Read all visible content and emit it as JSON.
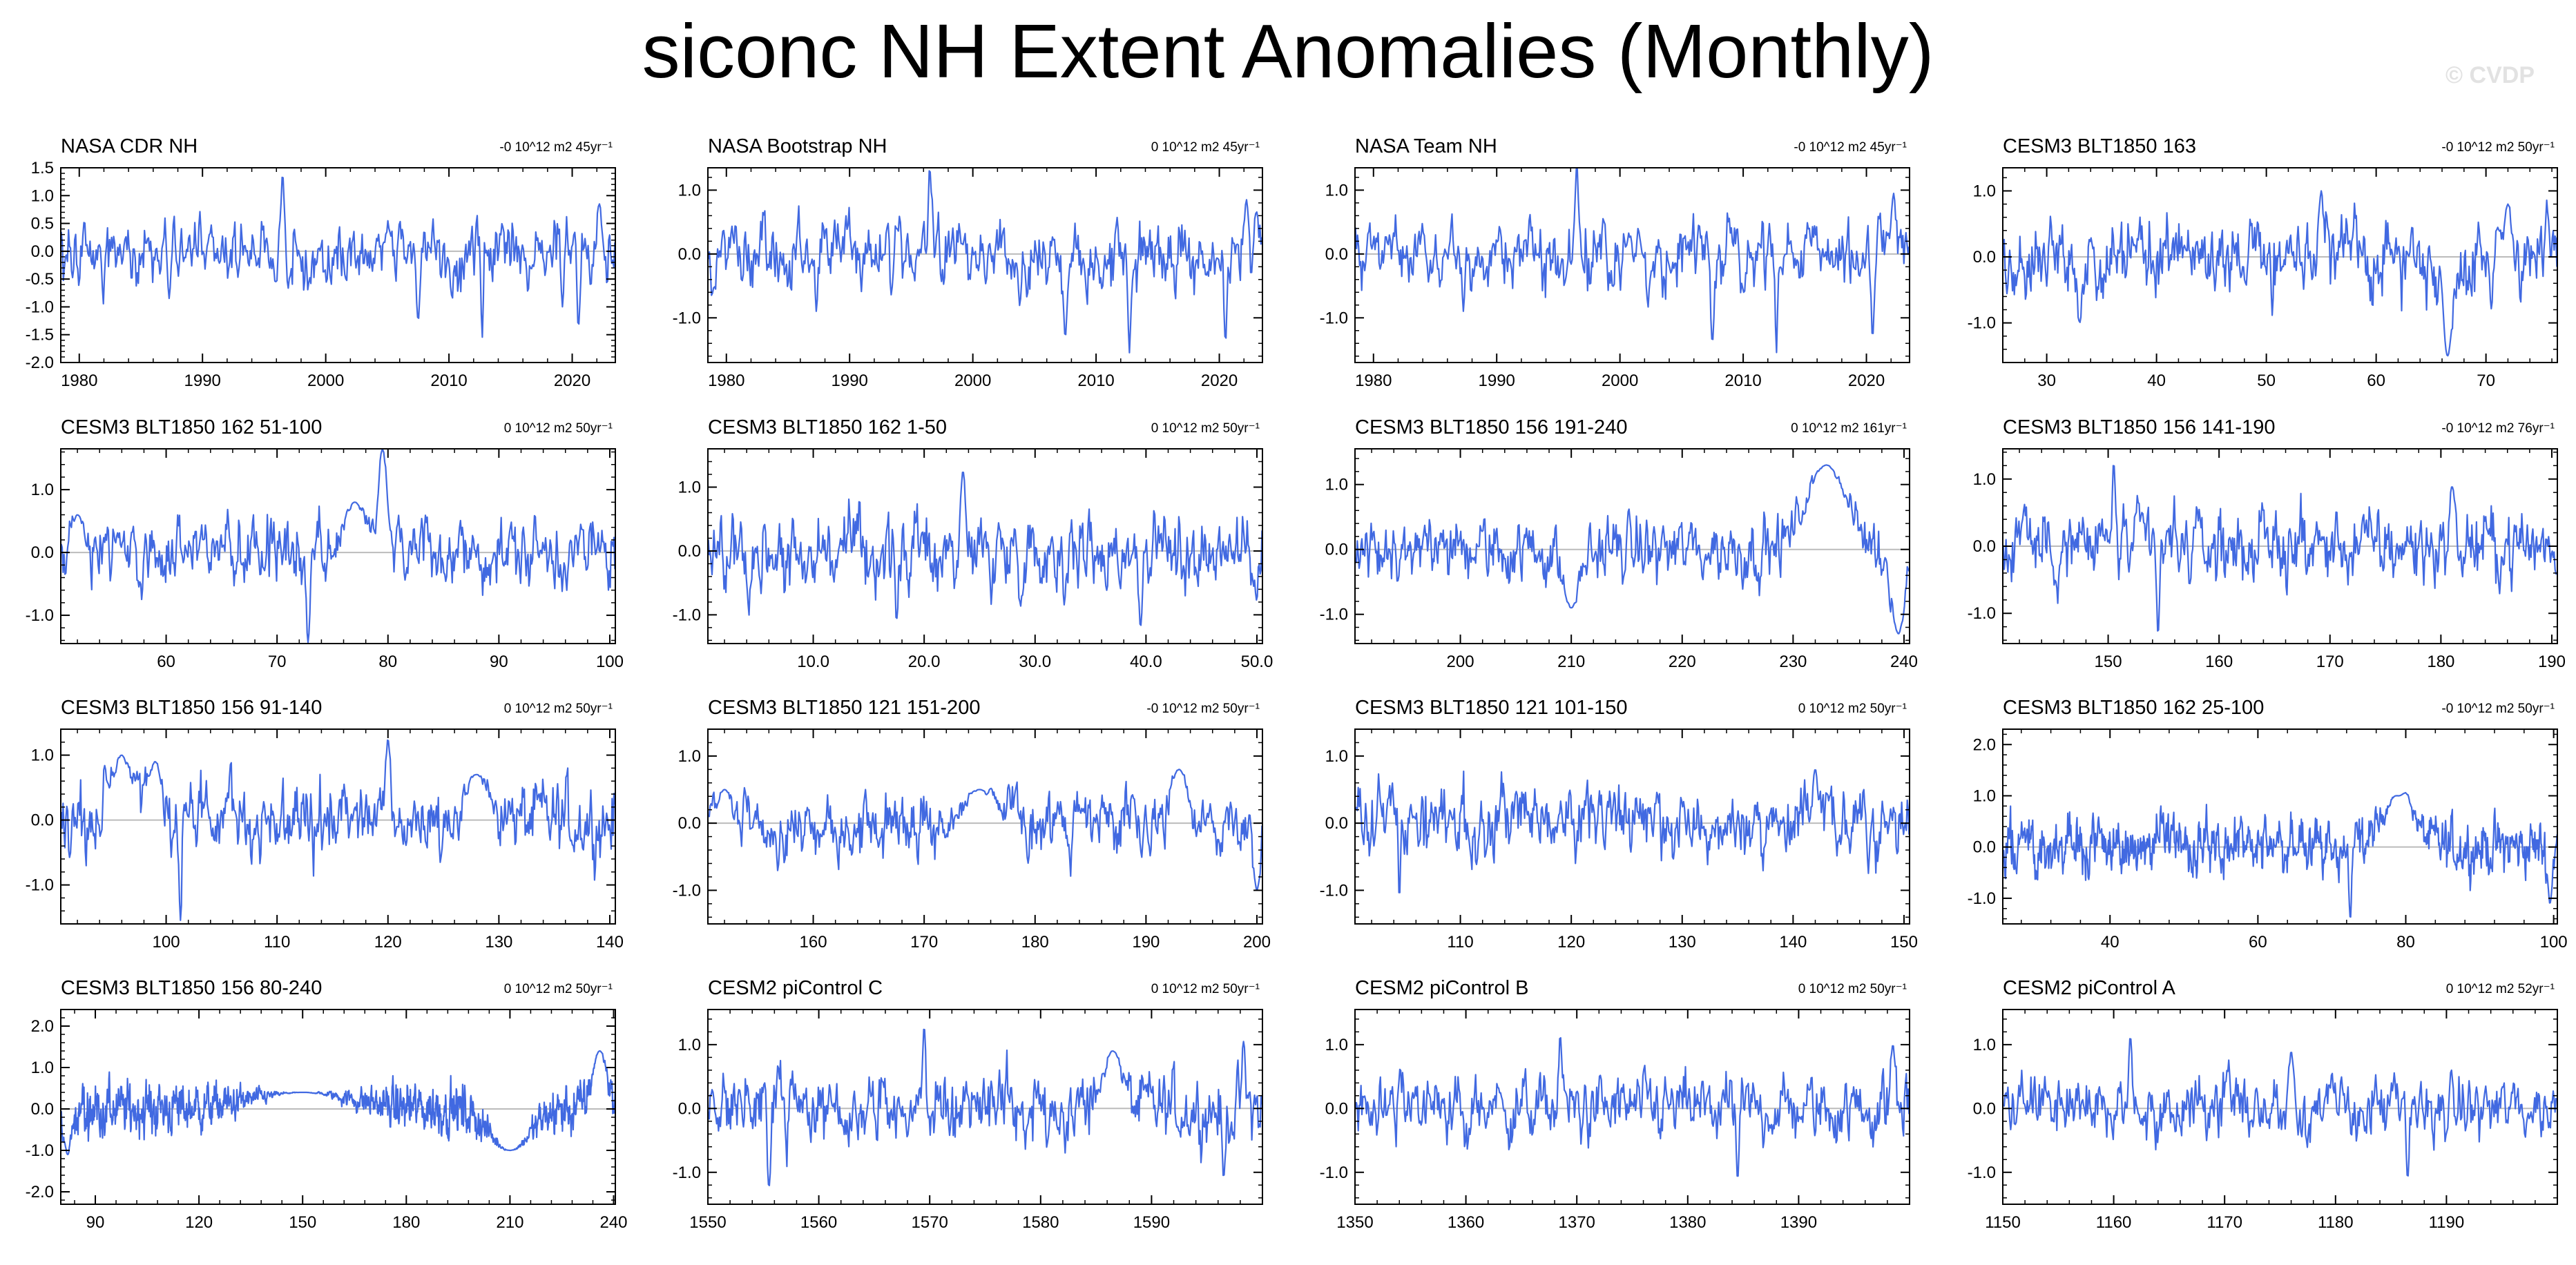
{
  "figure": {
    "title": "siconc NH Extent Anomalies (Monthly)",
    "watermark": "© CVDP",
    "line_color": "#4169e1",
    "zero_line_color": "#bbbbbb"
  },
  "chart_data": [
    {
      "type": "line",
      "title": "NASA CDR NH",
      "trend": "-0 10^12 m2 45yr⁻¹",
      "xlim": [
        1978.5,
        2023.5
      ],
      "ylim": [
        -2.0,
        1.5
      ],
      "xticks": [
        "1980",
        "1990",
        "2000",
        "2010",
        "2020"
      ],
      "xtick_values": [
        1980,
        1990,
        2000,
        2010,
        2020
      ],
      "yticks": [
        "1.5",
        "1.0",
        "0.5",
        "0.0",
        "-0.5",
        "-1.0",
        "-1.5",
        "-2.0"
      ],
      "ytick_values": [
        1.5,
        1.0,
        0.5,
        0.0,
        -0.5,
        -1.0,
        -1.5,
        -2.0
      ],
      "n_points": 540,
      "amplitude": 0.35,
      "seed": 11,
      "features": [
        [
          1996.5,
          1.4,
          0.2
        ],
        [
          2012.7,
          -1.55,
          0.15
        ],
        [
          2020.5,
          -1.4,
          0.15
        ],
        [
          2007.5,
          -1.25,
          0.2
        ],
        [
          1987.3,
          -0.85,
          0.15
        ],
        [
          2022.2,
          0.85,
          0.25
        ],
        [
          2019.2,
          -1.0,
          0.15
        ]
      ]
    },
    {
      "type": "line",
      "title": "NASA Bootstrap NH",
      "trend": "0 10^12 m2 45yr⁻¹",
      "xlim": [
        1978.5,
        2023.5
      ],
      "ylim": [
        -1.7,
        1.35
      ],
      "xticks": [
        "1980",
        "1990",
        "2000",
        "2010",
        "2020"
      ],
      "xtick_values": [
        1980,
        1990,
        2000,
        2010,
        2020
      ],
      "yticks": [
        "1.0",
        "0.0",
        "-1.0"
      ],
      "ytick_values": [
        1.0,
        0.0,
        -1.0
      ],
      "n_points": 540,
      "amplitude": 0.32,
      "seed": 12,
      "features": [
        [
          1996.5,
          1.35,
          0.2
        ],
        [
          2012.7,
          -1.55,
          0.15
        ],
        [
          2020.5,
          -1.4,
          0.15
        ],
        [
          2007.5,
          -1.3,
          0.2
        ],
        [
          1987.3,
          -0.9,
          0.15
        ],
        [
          2022.2,
          0.85,
          0.25
        ]
      ]
    },
    {
      "type": "line",
      "title": "NASA Team NH",
      "trend": "-0 10^12 m2 45yr⁻¹",
      "xlim": [
        1978.5,
        2023.5
      ],
      "ylim": [
        -1.7,
        1.35
      ],
      "xticks": [
        "1980",
        "1990",
        "2000",
        "2010",
        "2020"
      ],
      "xtick_values": [
        1980,
        1990,
        2000,
        2010,
        2020
      ],
      "yticks": [
        "1.0",
        "0.0",
        "-1.0"
      ],
      "ytick_values": [
        1.0,
        0.0,
        -1.0
      ],
      "n_points": 540,
      "amplitude": 0.32,
      "seed": 13,
      "features": [
        [
          1996.5,
          1.4,
          0.2
        ],
        [
          2012.7,
          -1.55,
          0.15
        ],
        [
          2020.5,
          -1.35,
          0.15
        ],
        [
          2007.5,
          -1.4,
          0.2
        ],
        [
          1987.3,
          -0.9,
          0.15
        ],
        [
          2022.2,
          0.95,
          0.25
        ]
      ]
    },
    {
      "type": "line",
      "title": "CESM3 BLT1850 163",
      "trend": "-0 10^12 m2 50yr⁻¹",
      "xlim": [
        26,
        76.5
      ],
      "ylim": [
        -1.6,
        1.35
      ],
      "xticks": [
        "30",
        "40",
        "50",
        "60",
        "70"
      ],
      "xtick_values": [
        30,
        40,
        50,
        60,
        70
      ],
      "yticks": [
        "1.0",
        "0.0",
        "-1.0"
      ],
      "ytick_values": [
        1.0,
        0.0,
        -1.0
      ],
      "n_points": 600,
      "amplitude": 0.36,
      "seed": 14,
      "features": [
        [
          66.5,
          -1.5,
          0.6
        ],
        [
          55,
          1.0,
          0.3
        ],
        [
          72,
          0.8,
          0.5
        ],
        [
          33,
          -1.0,
          0.3
        ]
      ]
    },
    {
      "type": "line",
      "title": "CESM3 BLT1850 162 51-100",
      "trend": "0 10^12 m2 50yr⁻¹",
      "xlim": [
        50.5,
        100.5
      ],
      "ylim": [
        -1.45,
        1.65
      ],
      "xticks": [
        "60",
        "70",
        "80",
        "90",
        "100"
      ],
      "xtick_values": [
        60,
        70,
        80,
        90,
        100
      ],
      "yticks": [
        "1.0",
        "0.0",
        "-1.0"
      ],
      "ytick_values": [
        1.0,
        0.0,
        -1.0
      ],
      "n_points": 600,
      "amplitude": 0.33,
      "seed": 21,
      "features": [
        [
          79.5,
          1.7,
          0.6
        ],
        [
          72.8,
          -1.45,
          0.2
        ],
        [
          77,
          0.8,
          1.5
        ],
        [
          52,
          0.6,
          0.8
        ]
      ]
    },
    {
      "type": "line",
      "title": "CESM3 BLT1850 162 1-50",
      "trend": "0 10^12 m2 50yr⁻¹",
      "xlim": [
        0.5,
        50.5
      ],
      "ylim": [
        -1.45,
        1.6
      ],
      "xticks": [
        "10.0",
        "20.0",
        "30.0",
        "40.0",
        "50.0"
      ],
      "xtick_values": [
        10,
        20,
        30,
        40,
        50
      ],
      "yticks": [
        "1.0",
        "0.0",
        "-1.0"
      ],
      "ytick_values": [
        1.0,
        0.0,
        -1.0
      ],
      "n_points": 600,
      "amplitude": 0.35,
      "seed": 22,
      "features": [
        [
          23.5,
          1.25,
          0.3
        ],
        [
          39.5,
          -1.2,
          0.2
        ],
        [
          17.5,
          -1.1,
          0.2
        ]
      ]
    },
    {
      "type": "line",
      "title": "CESM3 BLT1850 156 191-240",
      "trend": "0 10^12 m2 161yr⁻¹",
      "xlim": [
        190.5,
        240.5
      ],
      "ylim": [
        -1.45,
        1.55
      ],
      "xticks": [
        "200",
        "210",
        "220",
        "230",
        "240"
      ],
      "xtick_values": [
        200,
        210,
        220,
        230,
        240
      ],
      "yticks": [
        "1.0",
        "0.0",
        "-1.0"
      ],
      "ytick_values": [
        1.0,
        0.0,
        -1.0
      ],
      "n_points": 600,
      "amplitude": 0.3,
      "seed": 23,
      "features": [
        [
          233,
          1.3,
          2.5
        ],
        [
          239.5,
          -1.3,
          0.8
        ],
        [
          210,
          -0.9,
          1.0
        ]
      ]
    },
    {
      "type": "line",
      "title": "CESM3 BLT1850 156 141-190",
      "trend": "-0 10^12 m2 76yr⁻¹",
      "xlim": [
        140.5,
        190.5
      ],
      "ylim": [
        -1.45,
        1.45
      ],
      "xticks": [
        "150",
        "160",
        "170",
        "180",
        "190"
      ],
      "xtick_values": [
        150,
        160,
        170,
        180,
        190
      ],
      "yticks": [
        "1.0",
        "0.0",
        "-1.0"
      ],
      "ytick_values": [
        1.0,
        0.0,
        -1.0
      ],
      "n_points": 600,
      "amplitude": 0.33,
      "seed": 24,
      "features": [
        [
          150.5,
          1.25,
          0.2
        ],
        [
          154.5,
          -1.3,
          0.2
        ],
        [
          181,
          0.9,
          0.3
        ]
      ]
    },
    {
      "type": "line",
      "title": "CESM3 BLT1850 156 91-140",
      "trend": "0 10^12 m2 50yr⁻¹",
      "xlim": [
        90.5,
        140.5
      ],
      "ylim": [
        -1.6,
        1.4
      ],
      "xticks": [
        "100",
        "110",
        "120",
        "130",
        "140"
      ],
      "xtick_values": [
        100,
        110,
        120,
        130,
        140
      ],
      "yticks": [
        "1.0",
        "0.0",
        "-1.0"
      ],
      "ytick_values": [
        1.0,
        0.0,
        -1.0
      ],
      "n_points": 600,
      "amplitude": 0.36,
      "seed": 31,
      "features": [
        [
          101.3,
          -1.55,
          0.15
        ],
        [
          96,
          1.0,
          1.2
        ],
        [
          99,
          0.9,
          0.8
        ],
        [
          120,
          1.25,
          0.3
        ],
        [
          128,
          0.7,
          1.5
        ]
      ]
    },
    {
      "type": "line",
      "title": "CESM3 BLT1850 121 151-200",
      "trend": "-0 10^12 m2 50yr⁻¹",
      "xlim": [
        150.5,
        200.5
      ],
      "ylim": [
        -1.5,
        1.4
      ],
      "xticks": [
        "160",
        "170",
        "180",
        "190",
        "200"
      ],
      "xtick_values": [
        160,
        170,
        180,
        190,
        200
      ],
      "yticks": [
        "1.0",
        "0.0",
        "-1.0"
      ],
      "ytick_values": [
        1.0,
        0.0,
        -1.0
      ],
      "n_points": 600,
      "amplitude": 0.28,
      "seed": 32,
      "features": [
        [
          152,
          0.5,
          1.0
        ],
        [
          193,
          0.8,
          1.0
        ],
        [
          200,
          -1.0,
          0.4
        ],
        [
          175,
          0.5,
          2.0
        ]
      ]
    },
    {
      "type": "line",
      "title": "CESM3 BLT1850 121 101-150",
      "trend": "0 10^12 m2 50yr⁻¹",
      "xlim": [
        100.5,
        150.5
      ],
      "ylim": [
        -1.5,
        1.4
      ],
      "xticks": [
        "110",
        "120",
        "130",
        "140",
        "150"
      ],
      "xtick_values": [
        110,
        120,
        130,
        140,
        150
      ],
      "yticks": [
        "1.0",
        "0.0",
        "-1.0"
      ],
      "ytick_values": [
        1.0,
        0.0,
        -1.0
      ],
      "n_points": 600,
      "amplitude": 0.32,
      "seed": 33,
      "features": [
        [
          104.5,
          -1.15,
          0.15
        ],
        [
          142,
          0.8,
          0.3
        ]
      ]
    },
    {
      "type": "line",
      "title": "CESM3 BLT1850 162 25-100",
      "trend": "-0 10^12 m2 50yr⁻¹",
      "xlim": [
        25.5,
        100.5
      ],
      "ylim": [
        -1.5,
        2.3
      ],
      "xticks": [
        "40",
        "60",
        "80",
        "100"
      ],
      "xtick_values": [
        40,
        60,
        80,
        100
      ],
      "yticks": [
        "2.0",
        "1.0",
        "0.0",
        "-1.0"
      ],
      "ytick_values": [
        2.0,
        1.0,
        0.0,
        -1.0
      ],
      "n_points": 900,
      "amplitude": 0.33,
      "seed": 34,
      "features": [
        [
          79.5,
          1.9,
          1.0
        ],
        [
          79,
          1.0,
          3.0
        ],
        [
          72.5,
          -1.4,
          0.25
        ],
        [
          99.5,
          -1.1,
          0.4
        ]
      ]
    },
    {
      "type": "line",
      "title": "CESM3 BLT1850 156 80-240",
      "trend": "0 10^12 m2 50yr⁻¹",
      "xlim": [
        80,
        240.5
      ],
      "ylim": [
        -2.3,
        2.4
      ],
      "xticks": [
        "90",
        "120",
        "150",
        "180",
        "210",
        "240"
      ],
      "xtick_values": [
        90,
        120,
        150,
        180,
        210,
        240
      ],
      "yticks": [
        "2.0",
        "1.0",
        "0.0",
        "-1.0",
        "-2.0"
      ],
      "ytick_values": [
        2.0,
        1.0,
        0.0,
        -1.0,
        -2.0
      ],
      "n_points": 1400,
      "amplitude": 0.38,
      "seed": 41,
      "features": [
        [
          236,
          1.4,
          3.0
        ],
        [
          210,
          -1.0,
          8.0
        ],
        [
          150,
          0.4,
          20.0
        ],
        [
          82,
          -1.1,
          1.5
        ]
      ]
    },
    {
      "type": "line",
      "title": "CESM2 piControl C",
      "trend": "0 10^12 m2 50yr⁻¹",
      "xlim": [
        1550,
        1600
      ],
      "ylim": [
        -1.5,
        1.55
      ],
      "xticks": [
        "1550",
        "1560",
        "1570",
        "1580",
        "1590"
      ],
      "xtick_values": [
        1550,
        1560,
        1570,
        1580,
        1590
      ],
      "yticks": [
        "1.0",
        "0.0",
        "-1.0"
      ],
      "ytick_values": [
        1.0,
        0.0,
        -1.0
      ],
      "n_points": 600,
      "amplitude": 0.33,
      "seed": 42,
      "features": [
        [
          1569.5,
          1.3,
          0.2
        ],
        [
          1586.5,
          0.9,
          1.2
        ],
        [
          1598.3,
          1.05,
          0.2
        ],
        [
          1555.5,
          -1.25,
          0.2
        ],
        [
          1596.5,
          -1.1,
          0.2
        ]
      ]
    },
    {
      "type": "line",
      "title": "CESM2 piControl B",
      "trend": "0 10^12 m2 50yr⁻¹",
      "xlim": [
        1350,
        1400
      ],
      "ylim": [
        -1.5,
        1.55
      ],
      "xticks": [
        "1350",
        "1360",
        "1370",
        "1380",
        "1390"
      ],
      "xtick_values": [
        1350,
        1360,
        1370,
        1380,
        1390
      ],
      "yticks": [
        "1.0",
        "0.0",
        "-1.0"
      ],
      "ytick_values": [
        1.0,
        0.0,
        -1.0
      ],
      "n_points": 600,
      "amplitude": 0.31,
      "seed": 43,
      "features": [
        [
          1368.5,
          1.15,
          0.2
        ],
        [
          1384.5,
          -1.1,
          0.2
        ],
        [
          1398.5,
          1.0,
          0.3
        ]
      ]
    },
    {
      "type": "line",
      "title": "CESM2 piControl A",
      "trend": "0 10^12 m2 52yr⁻¹",
      "xlim": [
        1150,
        1200
      ],
      "ylim": [
        -1.5,
        1.55
      ],
      "xticks": [
        "1150",
        "1160",
        "1170",
        "1180",
        "1190"
      ],
      "xtick_values": [
        1150,
        1160,
        1170,
        1180,
        1190
      ],
      "yticks": [
        "1.0",
        "0.0",
        "-1.0"
      ],
      "ytick_values": [
        1.0,
        0.0,
        -1.0
      ],
      "n_points": 600,
      "amplitude": 0.29,
      "seed": 44,
      "features": [
        [
          1161.5,
          1.15,
          0.2
        ],
        [
          1186.5,
          -1.1,
          0.2
        ],
        [
          1176,
          0.9,
          0.3
        ]
      ]
    }
  ]
}
